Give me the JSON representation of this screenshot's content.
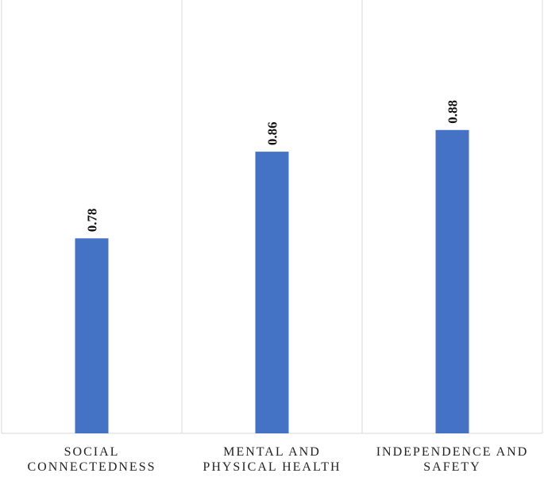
{
  "chart_data": {
    "type": "bar",
    "categories": [
      [
        "SOCIAL",
        "CONNECTEDNESS"
      ],
      [
        "MENTAL AND",
        "PHYSICAL HEALTH"
      ],
      [
        "INDEPENDENCE AND",
        "SAFETY"
      ]
    ],
    "values": [
      0.78,
      0.86,
      0.88
    ],
    "data_labels": [
      "0.78",
      "0.86",
      "0.88"
    ],
    "title": "",
    "xlabel": "",
    "ylabel": "",
    "ylim": [
      0.6,
      1.0
    ],
    "grid": "vertical category separators",
    "legend": "none",
    "data_label_orientation": "vertical",
    "colors": {
      "bar": "#4472c4",
      "separator": "#d9d9d9",
      "label": "#222222"
    }
  }
}
